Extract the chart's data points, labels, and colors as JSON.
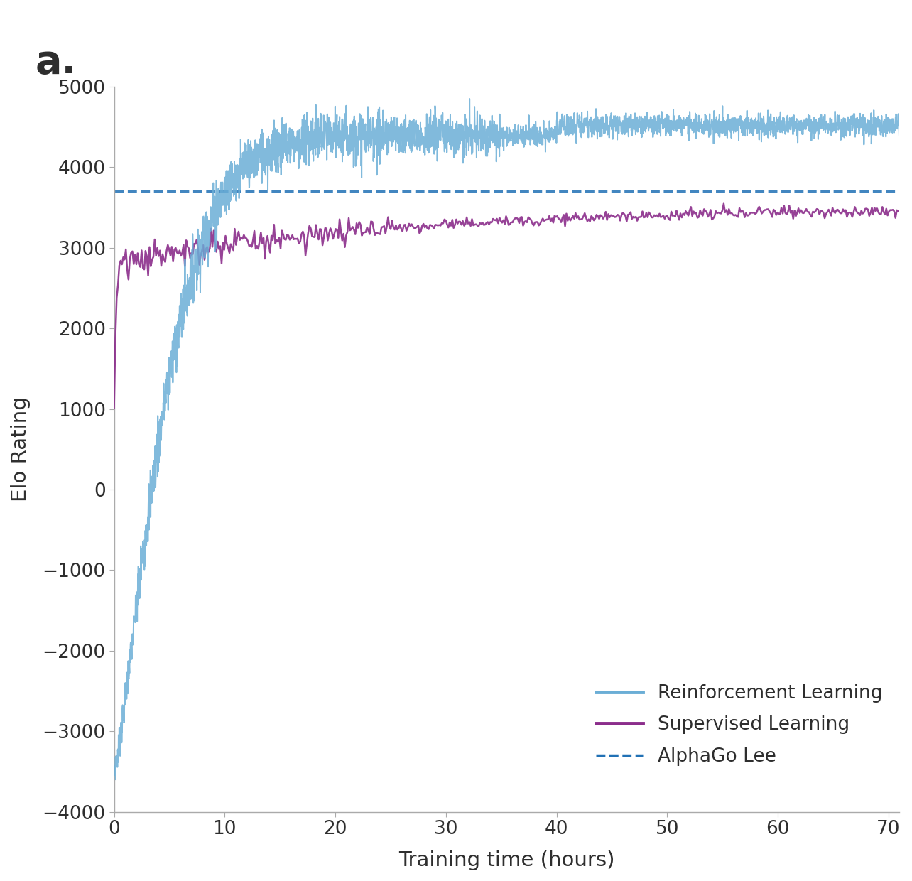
{
  "title_label": "a.",
  "xlabel": "Training time (hours)",
  "ylabel": "Elo Rating",
  "xlim": [
    0,
    71
  ],
  "ylim": [
    -4000,
    5000
  ],
  "xticks": [
    0,
    10,
    20,
    30,
    40,
    50,
    60,
    70
  ],
  "yticks": [
    -4000,
    -3000,
    -2000,
    -1000,
    0,
    1000,
    2000,
    3000,
    4000,
    5000
  ],
  "alphago_lee_elo": 3700,
  "rl_color": "#6baed6",
  "sl_color": "#8B2D8B",
  "alphago_color": "#2171b5",
  "background_color": "#ffffff",
  "legend_labels": [
    "Reinforcement Learning",
    "Supervised Learning",
    "AlphaGo Lee"
  ],
  "figure_width": 12.84,
  "figure_height": 12.4,
  "dpi": 100
}
